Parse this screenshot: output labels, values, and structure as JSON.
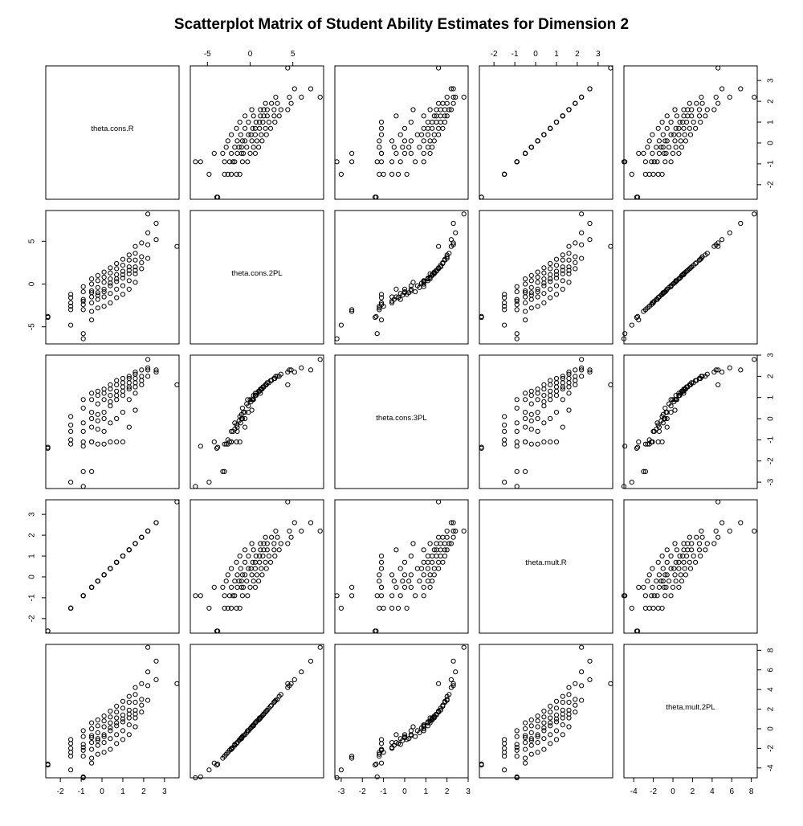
{
  "title": "Scatterplot Matrix of Student Ability Estimates for Dimension 2",
  "chart_data": {
    "type": "scatter",
    "title": "Scatterplot Matrix of Student Ability Estimates for Dimension 2",
    "variables": [
      "theta.cons.R",
      "theta.cons.2PL",
      "theta.cons.3PL",
      "theta.mult.R",
      "theta.mult.2PL"
    ],
    "axis_ranges": [
      [
        -2.7,
        3.7
      ],
      [
        -7.0,
        8.6
      ],
      [
        -3.3,
        3.0
      ],
      [
        -2.7,
        3.7
      ],
      [
        -5.0,
        8.6
      ]
    ],
    "ticks": [
      [
        -2,
        -1,
        0,
        1,
        2,
        3
      ],
      [
        -5,
        0,
        5
      ],
      [
        -3,
        -2,
        -1,
        0,
        1,
        2,
        3
      ],
      [
        -2,
        -1,
        0,
        1,
        2,
        3
      ],
      [
        -4,
        -2,
        0,
        2,
        4,
        6,
        8
      ]
    ],
    "axis_labels": {
      "top": {
        "cols": [
          1,
          3
        ],
        "ticks": [
          [
            "-5",
            "0",
            "5"
          ],
          [
            "-2",
            "-1",
            "0",
            "1",
            "2",
            "3"
          ]
        ]
      },
      "bottom": {
        "cols": [
          0,
          2,
          4
        ],
        "ticks": [
          [
            "-2",
            "-1",
            "0",
            "1",
            "2",
            "3"
          ],
          [
            "-3",
            "-2",
            "-1",
            "0",
            "1",
            "2",
            "3"
          ],
          [
            "-4",
            "-2",
            "0",
            "2",
            "4",
            "6",
            "8"
          ]
        ]
      },
      "left": {
        "rows": [
          1,
          3
        ],
        "ticks": [
          [
            "-5",
            "0",
            "5"
          ],
          [
            "-2",
            "-1",
            "0",
            "1",
            "2",
            "3"
          ]
        ]
      },
      "right": {
        "rows": [
          0,
          2,
          4
        ],
        "ticks": [
          [
            "-2",
            "-1",
            "0",
            "1",
            "2",
            "3"
          ],
          [
            "-3",
            "-2",
            "-1",
            "0",
            "1",
            "2",
            "3"
          ],
          [
            "-4",
            "-2",
            "0",
            "2",
            "4",
            "6",
            "8"
          ]
        ]
      }
    },
    "points": [
      [
        -2.6,
        -3.8,
        -1.35,
        -2.6,
        -3.6
      ],
      [
        -2.6,
        -3.9,
        -1.4,
        -2.6,
        -3.7
      ],
      [
        -1.5,
        -3.0,
        -1.2,
        -1.5,
        -2.8
      ],
      [
        -1.5,
        -2.2,
        -0.6,
        -1.5,
        -2.0
      ],
      [
        -1.5,
        -1.2,
        0.1,
        -1.5,
        -1.1
      ],
      [
        -1.5,
        -4.8,
        -3.0,
        -1.5,
        -4.2
      ],
      [
        -1.5,
        -2.6,
        -1.0,
        -1.5,
        -2.4
      ],
      [
        -1.5,
        -1.6,
        -0.3,
        -1.5,
        -1.5
      ],
      [
        -0.9,
        -6.4,
        -3.2,
        -0.9,
        -5.0
      ],
      [
        -0.9,
        -5.8,
        -1.3,
        -0.9,
        -4.9
      ],
      [
        -0.9,
        -3.0,
        -2.5,
        -0.9,
        -2.8
      ],
      [
        -0.9,
        -2.4,
        -1.1,
        -0.9,
        -2.2
      ],
      [
        -0.9,
        -1.8,
        -0.2,
        -0.9,
        -1.6
      ],
      [
        -0.9,
        -0.9,
        0.5,
        -0.9,
        -0.8
      ],
      [
        -0.9,
        -0.3,
        0.9,
        -0.9,
        -0.2
      ],
      [
        -0.9,
        -2.0,
        -0.6,
        -0.9,
        -1.9
      ],
      [
        -0.5,
        -4.2,
        -1.1,
        -0.5,
        -3.5
      ],
      [
        -0.5,
        -3.2,
        -2.5,
        -0.5,
        -3.0
      ],
      [
        -0.5,
        -2.2,
        -1.1,
        -0.5,
        -2.1
      ],
      [
        -0.5,
        -1.5,
        -0.4,
        -0.5,
        -1.4
      ],
      [
        -0.5,
        -0.8,
        0.3,
        -0.5,
        -0.7
      ],
      [
        -0.5,
        0.0,
        0.9,
        -0.5,
        0.0
      ],
      [
        -0.5,
        0.6,
        1.2,
        -0.5,
        0.6
      ],
      [
        -0.5,
        -1.0,
        0.0,
        -0.5,
        -0.9
      ],
      [
        -0.2,
        -2.8,
        -1.2,
        -0.2,
        -2.6
      ],
      [
        -0.2,
        -1.8,
        -0.5,
        -0.2,
        -1.7
      ],
      [
        -0.2,
        -1.0,
        0.2,
        -0.2,
        -1.0
      ],
      [
        -0.2,
        -0.4,
        0.7,
        -0.2,
        -0.4
      ],
      [
        -0.2,
        0.4,
        1.1,
        -0.2,
        0.3
      ],
      [
        -0.2,
        1.0,
        1.3,
        -0.2,
        0.9
      ],
      [
        -0.2,
        -1.3,
        -0.1,
        -0.2,
        -1.2
      ],
      [
        0.1,
        -2.6,
        -1.2,
        0.1,
        -2.4
      ],
      [
        0.1,
        -1.5,
        -0.6,
        0.1,
        -1.4
      ],
      [
        0.1,
        -0.6,
        0.3,
        0.1,
        -0.6
      ],
      [
        0.1,
        0.2,
        0.9,
        0.1,
        0.2
      ],
      [
        0.1,
        0.8,
        1.2,
        0.1,
        0.8
      ],
      [
        0.1,
        1.4,
        1.4,
        0.1,
        1.3
      ],
      [
        0.1,
        -0.9,
        0.0,
        0.1,
        -0.8
      ],
      [
        0.4,
        -2.2,
        -1.1,
        0.4,
        -2.1
      ],
      [
        0.4,
        -1.1,
        -0.2,
        0.4,
        -1.0
      ],
      [
        0.4,
        -0.2,
        0.6,
        0.4,
        -0.2
      ],
      [
        0.4,
        0.6,
        1.1,
        0.4,
        0.6
      ],
      [
        0.4,
        1.3,
        1.4,
        0.4,
        1.2
      ],
      [
        0.4,
        1.9,
        1.6,
        0.4,
        1.8
      ],
      [
        0.4,
        0.1,
        0.8,
        0.4,
        0.1
      ],
      [
        0.7,
        -1.6,
        -1.1,
        0.7,
        -1.5
      ],
      [
        0.7,
        -0.6,
        0.0,
        0.7,
        -0.6
      ],
      [
        0.7,
        0.3,
        0.9,
        0.7,
        0.3
      ],
      [
        0.7,
        1.1,
        1.3,
        0.7,
        1.1
      ],
      [
        0.7,
        1.8,
        1.6,
        0.7,
        1.7
      ],
      [
        0.7,
        2.4,
        1.8,
        0.7,
        2.3
      ],
      [
        0.7,
        0.6,
        1.1,
        0.7,
        0.6
      ],
      [
        1.0,
        -1.2,
        -1.1,
        1.0,
        -1.1
      ],
      [
        1.0,
        -0.2,
        0.3,
        1.0,
        -0.2
      ],
      [
        1.0,
        0.7,
        1.1,
        1.0,
        0.7
      ],
      [
        1.0,
        1.5,
        1.5,
        1.0,
        1.4
      ],
      [
        1.0,
        2.2,
        1.7,
        1.0,
        2.1
      ],
      [
        1.0,
        2.9,
        1.9,
        1.0,
        2.8
      ],
      [
        1.0,
        1.1,
        1.3,
        1.0,
        1.0
      ],
      [
        1.3,
        -0.6,
        -0.4,
        1.3,
        -0.6
      ],
      [
        1.3,
        0.4,
        0.9,
        1.3,
        0.4
      ],
      [
        1.3,
        1.2,
        1.4,
        1.3,
        1.1
      ],
      [
        1.3,
        2.0,
        1.7,
        1.3,
        1.9
      ],
      [
        1.3,
        2.8,
        1.9,
        1.3,
        2.7
      ],
      [
        1.3,
        3.4,
        2.0,
        1.3,
        3.3
      ],
      [
        1.3,
        1.6,
        1.5,
        1.3,
        1.5
      ],
      [
        1.6,
        0.2,
        0.4,
        1.6,
        0.2
      ],
      [
        1.6,
        1.2,
        1.2,
        1.6,
        1.1
      ],
      [
        1.6,
        2.0,
        1.7,
        1.6,
        1.9
      ],
      [
        1.6,
        2.8,
        1.9,
        1.6,
        2.7
      ],
      [
        1.6,
        3.6,
        2.1,
        1.6,
        3.5
      ],
      [
        1.6,
        4.4,
        2.2,
        1.6,
        4.2
      ],
      [
        1.6,
        1.6,
        1.5,
        1.6,
        1.5
      ],
      [
        1.9,
        1.8,
        1.6,
        1.9,
        1.7
      ],
      [
        1.9,
        3.2,
        2.0,
        1.9,
        3.0
      ],
      [
        1.9,
        4.8,
        2.3,
        1.9,
        4.6
      ],
      [
        1.9,
        2.5,
        1.8,
        1.9,
        2.4
      ],
      [
        2.2,
        3.0,
        2.0,
        2.2,
        2.9
      ],
      [
        2.2,
        4.6,
        2.3,
        2.2,
        4.4
      ],
      [
        2.2,
        6.0,
        2.4,
        2.2,
        5.8
      ],
      [
        2.2,
        8.2,
        2.8,
        2.2,
        8.3
      ],
      [
        2.6,
        5.2,
        2.2,
        2.6,
        5.0
      ],
      [
        2.6,
        7.1,
        2.3,
        2.6,
        6.9
      ],
      [
        3.6,
        4.4,
        1.6,
        3.6,
        4.6
      ]
    ]
  }
}
